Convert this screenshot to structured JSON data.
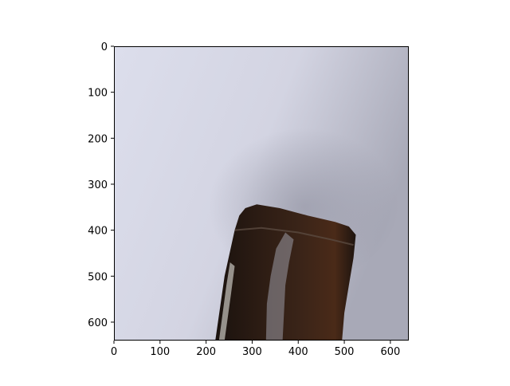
{
  "chart_data": {
    "type": "image",
    "title": "",
    "xlabel": "",
    "ylabel": "",
    "xlim": [
      0,
      640
    ],
    "ylim": [
      640,
      0
    ],
    "x_ticks": [
      0,
      100,
      200,
      300,
      400,
      500,
      600
    ],
    "y_ticks": [
      0,
      100,
      200,
      300,
      400,
      500,
      600
    ],
    "grid": false,
    "image_content": {
      "subject": "amber glass bottle neck, lying at an angle",
      "background_color": "#d9dae6",
      "object_color": "#2a1a12"
    }
  }
}
